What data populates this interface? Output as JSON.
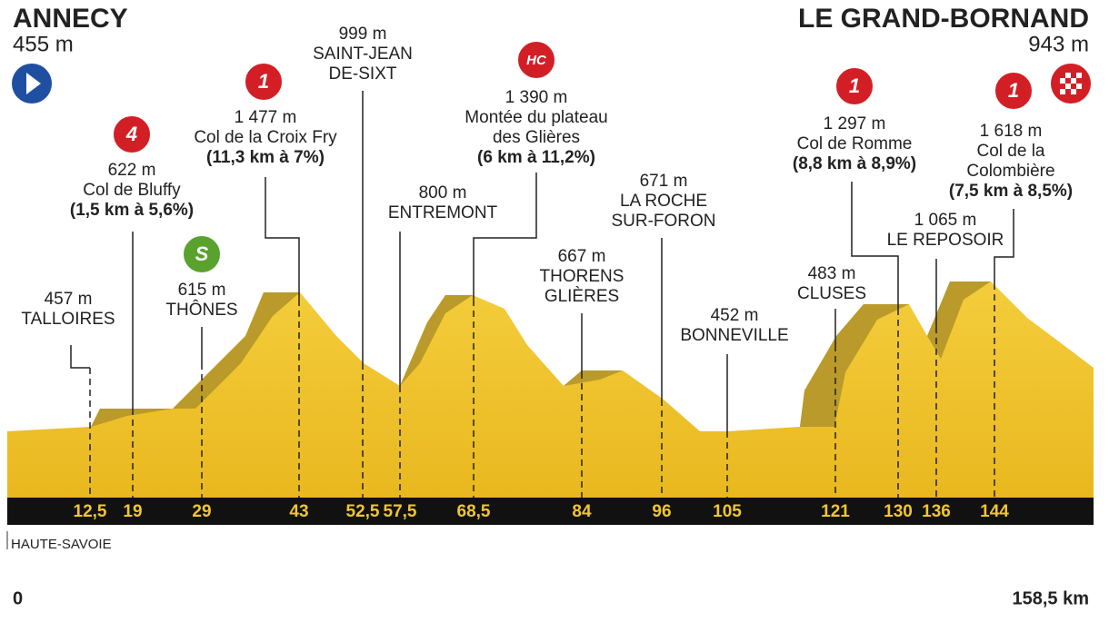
{
  "header": {
    "start": {
      "name": "ANNECY",
      "altitude": "455 m"
    },
    "finish": {
      "name": "LE GRAND-BORNAND",
      "altitude": "943 m"
    }
  },
  "points": [
    {
      "km": "12,5",
      "lines": [
        "457 m",
        "TALLOIRES"
      ]
    },
    {
      "km": "19",
      "badge": "4",
      "lines": [
        "622 m",
        "Col de Bluffy",
        "(1,5 km à 5,6%)"
      ]
    },
    {
      "km": "29",
      "badge": "S",
      "lines": [
        "615 m",
        "THÔNES"
      ]
    },
    {
      "km": "43",
      "badge": "1",
      "lines": [
        "1 477 m",
        "Col de la Croix Fry",
        "(11,3 km à 7%)"
      ]
    },
    {
      "km": "52,5",
      "lines": [
        "999 m",
        "SAINT-JEAN",
        "DE-SIXT"
      ]
    },
    {
      "km": "57,5",
      "lines": [
        "800 m",
        "ENTREMONT"
      ]
    },
    {
      "km": "68,5",
      "badge": "HC",
      "lines": [
        "1 390 m",
        "Montée du plateau",
        "des Glières",
        "(6 km à 11,2%)"
      ]
    },
    {
      "km": "84",
      "lines": [
        "667 m",
        "THORENS",
        "GLIÈRES"
      ]
    },
    {
      "km": "96",
      "lines": [
        "671 m",
        "LA ROCHE",
        "SUR-FORON"
      ]
    },
    {
      "km": "105",
      "lines": [
        "452 m",
        "BONNEVILLE"
      ]
    },
    {
      "km": "121",
      "lines": [
        "483 m",
        "CLUSES"
      ]
    },
    {
      "km": "130",
      "badge": "1",
      "lines": [
        "1 297 m",
        "Col de Romme",
        "(8,8 km à 8,9%)"
      ]
    },
    {
      "km": "136",
      "lines": [
        "1 065 m",
        "LE REPOSOIR"
      ]
    },
    {
      "km": "144",
      "badge": "1",
      "lines": [
        "1 618 m",
        "Col de la",
        "Colombière",
        "(7,5 km à 8,5%)"
      ]
    }
  ],
  "region": "HAUTE-SAVOIE",
  "distance_start": "0",
  "distance_end": "158,5 km"
}
